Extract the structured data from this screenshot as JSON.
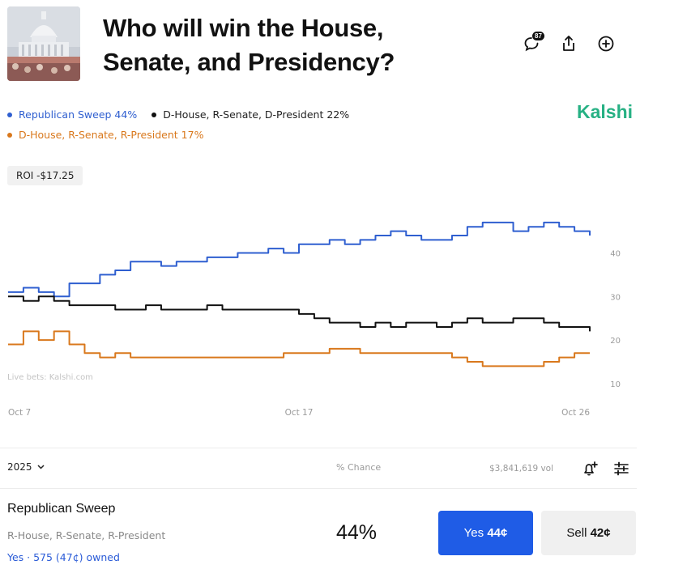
{
  "header": {
    "title": "Who will win the House, Senate, and Presidency?",
    "comment_count": "87",
    "icons": [
      "comment-icon",
      "share-icon",
      "add-icon"
    ],
    "brand": "Kalshi"
  },
  "legend": [
    {
      "label": "Republican Sweep 44%",
      "color": "#2f5fd0"
    },
    {
      "label": "D-House, R-Senate, D-President 22%",
      "color": "#111111"
    },
    {
      "label": "D-House, R-Senate, R-President 17%",
      "color": "#d9781c"
    }
  ],
  "roi": "ROI -$17.25",
  "chart_data": {
    "type": "line",
    "watermark": "Live bets: Kalshi.com",
    "x_ticks": [
      "Oct 7",
      "Oct 17",
      "Oct 26"
    ],
    "y_ticks": [
      40,
      30,
      20,
      10
    ],
    "ylim": [
      7,
      52
    ],
    "xlim": [
      0,
      19
    ],
    "y_axis_position": "right",
    "grid": false,
    "series": [
      {
        "name": "Republican Sweep",
        "color": "#2f5fd0",
        "x": [
          0,
          0.5,
          1,
          1.5,
          2,
          2.5,
          3,
          3.5,
          4,
          4.5,
          5,
          5.5,
          6,
          6.5,
          7,
          7.5,
          8,
          8.5,
          9,
          9.5,
          10,
          10.5,
          11,
          11.5,
          12,
          12.5,
          13,
          13.5,
          14,
          14.5,
          15,
          15.5,
          16,
          16.5,
          17,
          17.5,
          18,
          18.5,
          19
        ],
        "y": [
          31,
          32,
          31,
          30,
          33,
          33,
          35,
          36,
          38,
          38,
          37,
          38,
          38,
          39,
          39,
          40,
          40,
          41,
          40,
          42,
          42,
          43,
          42,
          43,
          44,
          45,
          44,
          43,
          43,
          44,
          46,
          47,
          47,
          45,
          46,
          47,
          46,
          45,
          44
        ]
      },
      {
        "name": "D-House, R-Senate, D-President",
        "color": "#111111",
        "x": [
          0,
          0.5,
          1,
          1.5,
          2,
          2.5,
          3,
          3.5,
          4,
          4.5,
          5,
          5.5,
          6,
          6.5,
          7,
          7.5,
          8,
          8.5,
          9,
          9.5,
          10,
          10.5,
          11,
          11.5,
          12,
          12.5,
          13,
          13.5,
          14,
          14.5,
          15,
          15.5,
          16,
          16.5,
          17,
          17.5,
          18,
          18.5,
          19
        ],
        "y": [
          30,
          29,
          30,
          29,
          28,
          28,
          28,
          27,
          27,
          28,
          27,
          27,
          27,
          28,
          27,
          27,
          27,
          27,
          27,
          26,
          25,
          24,
          24,
          23,
          24,
          23,
          24,
          24,
          23,
          24,
          25,
          24,
          24,
          25,
          25,
          24,
          23,
          23,
          22
        ]
      },
      {
        "name": "D-House, R-Senate, R-President",
        "color": "#d9781c",
        "x": [
          0,
          0.5,
          1,
          1.5,
          2,
          2.5,
          3,
          3.5,
          4,
          4.5,
          5,
          5.5,
          6,
          6.5,
          7,
          7.5,
          8,
          8.5,
          9,
          9.5,
          10,
          10.5,
          11,
          11.5,
          12,
          12.5,
          13,
          13.5,
          14,
          14.5,
          15,
          15.5,
          16,
          16.5,
          17,
          17.5,
          18,
          18.5,
          19
        ],
        "y": [
          19,
          22,
          20,
          22,
          19,
          17,
          16,
          17,
          16,
          16,
          16,
          16,
          16,
          16,
          16,
          16,
          16,
          16,
          17,
          17,
          17,
          18,
          18,
          17,
          17,
          17,
          17,
          17,
          17,
          16,
          15,
          14,
          14,
          14,
          14,
          15,
          16,
          17,
          17
        ]
      }
    ]
  },
  "toolbar": {
    "year": "2025",
    "metric": "% Chance",
    "volume": "$3,841,619 vol",
    "icons": [
      "add-alert-icon",
      "settings-sliders-icon"
    ]
  },
  "market": {
    "name": "Republican Sweep",
    "subtitle": "R-House, R-Senate, R-President",
    "owned": "Yes · 575 (47¢) owned",
    "chance": "44%",
    "yes_prefix": "Yes",
    "yes_price": "44¢",
    "sell_prefix": "Sell",
    "sell_price": "42¢"
  }
}
